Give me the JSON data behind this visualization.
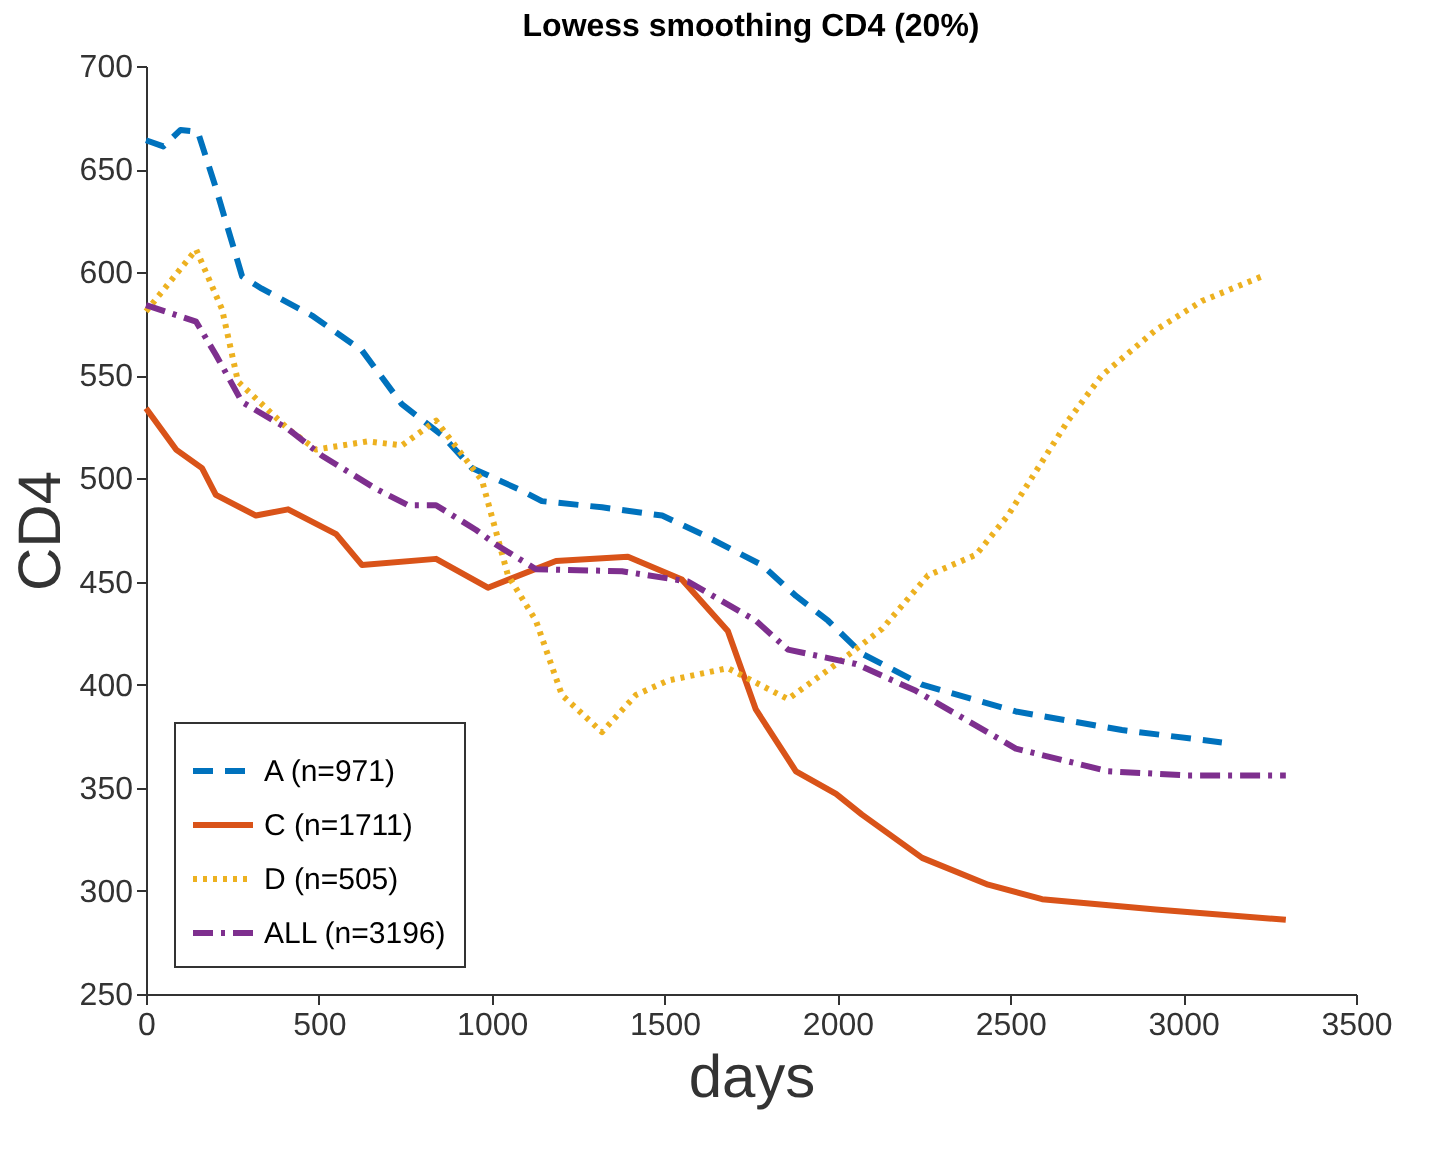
{
  "chart_data": {
    "type": "line",
    "title": "Lowess smoothing CD4 (20%)",
    "xlabel": "days",
    "ylabel": "CD4",
    "xlim": [
      0,
      3500
    ],
    "xticks": [
      0,
      500,
      1000,
      1500,
      2000,
      2500,
      3000,
      3500
    ],
    "ylim": [
      250,
      700
    ],
    "yticks": [
      250,
      300,
      350,
      400,
      450,
      500,
      550,
      600,
      650,
      700
    ],
    "grid": false,
    "legend": "bottom left",
    "marker": "none",
    "series": [
      {
        "name": "A (n=971)",
        "color": "#0072bd",
        "line_style": "dashed",
        "x": [
          0,
          50,
          100,
          150,
          200,
          278,
          335,
          480,
          625,
          740,
          856,
          943,
          1088,
          1145,
          1319,
          1493,
          1608,
          1782,
          1880,
          1973,
          2071,
          2245,
          2516,
          2823,
          3112
        ],
        "values": [
          664,
          661,
          669,
          668,
          642,
          598,
          592,
          579,
          562,
          536,
          521,
          505,
          494,
          489,
          486,
          482,
          473,
          458,
          443,
          431,
          415,
          400,
          387,
          378,
          372
        ]
      },
      {
        "name": "C (n=1711)",
        "color": "#d95319",
        "line_style": "solid",
        "x": [
          0,
          87,
          162,
          202,
          318,
          411,
          550,
          625,
          839,
          989,
          1186,
          1394,
          1550,
          1683,
          1764,
          1880,
          1996,
          2071,
          2245,
          2436,
          2592,
          2921,
          3297
        ],
        "values": [
          534,
          514,
          505,
          492,
          482,
          485,
          473,
          458,
          461,
          447,
          460,
          462,
          451,
          426,
          388,
          358,
          347,
          337,
          316,
          303,
          296,
          291,
          286
        ]
      },
      {
        "name": "D (n=505)",
        "color": "#edb120",
        "line_style": "dotted",
        "x": [
          0,
          145,
          220,
          266,
          411,
          492,
          642,
          740,
          839,
          972,
          1047,
          1128,
          1203,
          1319,
          1417,
          1510,
          1683,
          1857,
          2013,
          2129,
          2262,
          2401,
          2493,
          2667,
          2765,
          2921,
          3054,
          3228
        ],
        "values": [
          581,
          611,
          582,
          547,
          524,
          514,
          518,
          516,
          528,
          499,
          453,
          431,
          395,
          377,
          395,
          402,
          408,
          393,
          412,
          427,
          453,
          463,
          482,
          528,
          550,
          572,
          586,
          598
        ]
      },
      {
        "name": "ALL (n=3196)",
        "color": "#7e2f8e",
        "line_style": "dashdot",
        "x": [
          0,
          145,
          202,
          278,
          411,
          509,
          665,
          758,
          839,
          955,
          1012,
          1128,
          1377,
          1568,
          1764,
          1857,
          2054,
          2227,
          2516,
          2783,
          3014,
          3297
        ],
        "values": [
          584,
          576,
          560,
          537,
          524,
          511,
          495,
          487,
          487,
          475,
          468,
          456,
          455,
          450,
          431,
          417,
          410,
          397,
          369,
          358,
          356,
          356
        ]
      }
    ]
  }
}
